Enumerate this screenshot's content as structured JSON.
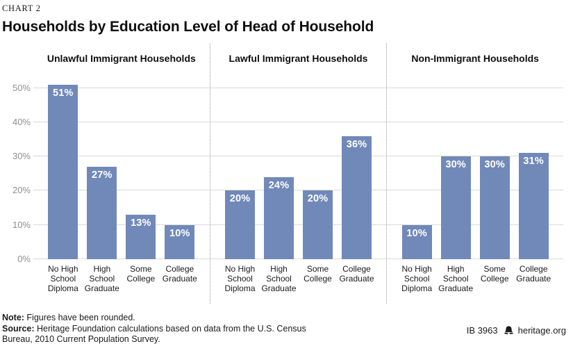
{
  "header": {
    "kicker": "CHART 2",
    "title": "Households by Education Level of Head of Household"
  },
  "chart_data": {
    "type": "bar",
    "categories": [
      "No High School Diploma",
      "High School Graduate",
      "Some College",
      "College Graduate"
    ],
    "category_lines": [
      [
        "No High",
        "School",
        "Diploma"
      ],
      [
        "High",
        "School",
        "Graduate"
      ],
      [
        "Some",
        "College"
      ],
      [
        "College",
        "Graduate"
      ]
    ],
    "panels": [
      {
        "title": "Unlawful Immigrant Households",
        "values": [
          51,
          27,
          13,
          10
        ],
        "labels": [
          "51%",
          "27%",
          "13%",
          "10%"
        ]
      },
      {
        "title": "Lawful Immigrant Households",
        "values": [
          20,
          24,
          20,
          36
        ],
        "labels": [
          "20%",
          "24%",
          "20%",
          "36%"
        ]
      },
      {
        "title": "Non-Immigrant Households",
        "values": [
          10,
          30,
          30,
          31
        ],
        "labels": [
          "10%",
          "30%",
          "30%",
          "31%"
        ]
      }
    ],
    "y_axis": {
      "ticks": [
        "0%",
        "10%",
        "20%",
        "30%",
        "40%",
        "50%"
      ],
      "tick_values": [
        0,
        10,
        20,
        30,
        40,
        50
      ],
      "ylim": [
        0,
        54
      ]
    },
    "grid": true,
    "legend": "none",
    "bar_color": "#7189b9",
    "value_label_color": "#ffffff",
    "gridline_color": "#d9d9d9"
  },
  "footer": {
    "note_label": "Note:",
    "note_text": " Figures have been rounded.",
    "source_label": "Source:",
    "source_text": " Heritage Foundation calculations based on data from the U.S. Census Bureau, 2010 Current Population Survey.",
    "report_id": "IB 3963",
    "site": "heritage.org",
    "bell_icon": "liberty-bell"
  }
}
